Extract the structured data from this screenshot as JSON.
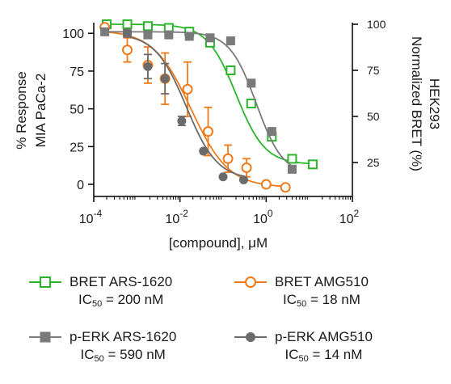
{
  "chart_data": {
    "type": "scatter",
    "xscale": "log",
    "xlim": [
      0.0001,
      100
    ],
    "ylim": [
      -8,
      106
    ],
    "ylim_right": [
      6.6,
      100
    ],
    "x_ticks": [
      {
        "value": 0.0001,
        "base": "10",
        "exp": "-4"
      },
      {
        "value": 0.01,
        "base": "10",
        "exp": "-2"
      },
      {
        "value": 1,
        "base": "10",
        "exp": "0"
      },
      {
        "value": 100,
        "base": "10",
        "exp": "2"
      }
    ],
    "y_ticks": [
      0,
      25,
      50,
      75,
      100
    ],
    "y_right_ticks": [
      25,
      50,
      75,
      100
    ],
    "xlabel": "[compound], μM",
    "ylabel_lines": [
      "% Response",
      "MIA PaCa-2"
    ],
    "ylabel_right_lines": [
      "Normalized BRET (%)",
      "HEK293"
    ],
    "series": [
      {
        "name": "BRET ARS-1620",
        "ic50_label": "200 nM",
        "color": "#2ab52a",
        "marker": "open-square",
        "axis": "right",
        "ic50": 0.2,
        "hill": 1.3,
        "top": 100,
        "bottom": 24,
        "x": [
          0.0002,
          0.0006,
          0.0018,
          0.0055,
          0.0165,
          0.05,
          0.15,
          0.45,
          1.35,
          4.0,
          12.0
        ],
        "y": [
          100,
          100,
          99,
          98,
          96,
          90,
          75,
          57,
          39,
          27,
          24
        ],
        "err": [
          0,
          0,
          0,
          0,
          0,
          0,
          2,
          0,
          0,
          0,
          0
        ]
      },
      {
        "name": "BRET AMG510",
        "ic50_label": "18 nM",
        "color": "#f07a1a",
        "marker": "open-circle",
        "axis": "left",
        "ic50": 0.018,
        "hill": 1.0,
        "top": 102,
        "bottom": -2,
        "x": [
          0.00018,
          0.0006,
          0.0018,
          0.0045,
          0.015,
          0.045,
          0.13,
          0.35,
          1.0,
          2.8
        ],
        "y": [
          104,
          89,
          79,
          70,
          63,
          35,
          17,
          11,
          0,
          -2
        ],
        "err": [
          0,
          8,
          12,
          17,
          18,
          16,
          9,
          6,
          0,
          0
        ]
      },
      {
        "name": "p-ERK ARS-1620",
        "ic50_label": "590 nM",
        "color": "#7a7a7a",
        "marker": "filled-square",
        "axis": "left",
        "ic50": 0.59,
        "hill": 1.4,
        "top": 101,
        "bottom": 6,
        "x": [
          0.00018,
          0.0006,
          0.0018,
          0.0055,
          0.0165,
          0.05,
          0.15,
          0.45,
          1.35,
          4.0
        ],
        "y": [
          101,
          100,
          99,
          99,
          98,
          97,
          95,
          67,
          35,
          10
        ],
        "err": [
          0,
          0,
          0,
          0,
          0,
          0,
          0,
          0,
          0,
          0
        ]
      },
      {
        "name": "p-ERK AMG510",
        "ic50_label": "14 nM",
        "color": "#6b6b6b",
        "marker": "filled-circle",
        "axis": "left",
        "ic50": 0.014,
        "hill": 1.2,
        "top": 100,
        "bottom": 3,
        "x": [
          0.0006,
          0.0018,
          0.0045,
          0.011,
          0.035,
          0.1,
          0.3
        ],
        "y": [
          100,
          78,
          70,
          42,
          22,
          5,
          3
        ],
        "err": [
          0,
          8,
          10,
          3,
          0,
          0,
          0
        ]
      }
    ]
  },
  "legend": [
    {
      "line1": "BRET ARS-1620",
      "ic_prefix": "IC",
      "ic_sub": "50",
      "ic_value": " = 200 nM"
    },
    {
      "line1": "BRET AMG510",
      "ic_prefix": "IC",
      "ic_sub": "50",
      "ic_value": " = 18 nM"
    },
    {
      "line1": "p-ERK ARS-1620",
      "ic_prefix": "IC",
      "ic_sub": "50",
      "ic_value": " = 590 nM"
    },
    {
      "line1": "p-ERK AMG510",
      "ic_prefix": "IC",
      "ic_sub": "50",
      "ic_value": " = 14 nM"
    }
  ]
}
